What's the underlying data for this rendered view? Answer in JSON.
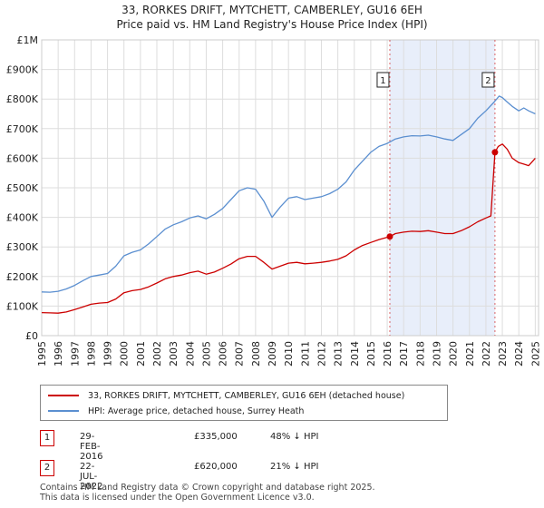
{
  "chart_data": {
    "type": "line",
    "title": "33, RORKES DRIFT, MYTCHETT, CAMBERLEY, GU16 6EH",
    "subtitle": "Price paid vs. HM Land Registry's House Price Index (HPI)",
    "xlim": [
      1995,
      2025.2
    ],
    "ylim": [
      0,
      1000000
    ],
    "x_ticks": [
      "1995",
      "1996",
      "1997",
      "1998",
      "1999",
      "2000",
      "2001",
      "2002",
      "2003",
      "2004",
      "2005",
      "2006",
      "2007",
      "2008",
      "2009",
      "2010",
      "2011",
      "2012",
      "2013",
      "2014",
      "2015",
      "2016",
      "2017",
      "2018",
      "2019",
      "2020",
      "2021",
      "2022",
      "2023",
      "2024",
      "2025"
    ],
    "y_ticks": [
      {
        "value": 0,
        "label": "£0"
      },
      {
        "value": 100000,
        "label": "£100K"
      },
      {
        "value": 200000,
        "label": "£200K"
      },
      {
        "value": 300000,
        "label": "£300K"
      },
      {
        "value": 400000,
        "label": "£400K"
      },
      {
        "value": 500000,
        "label": "£500K"
      },
      {
        "value": 600000,
        "label": "£600K"
      },
      {
        "value": 700000,
        "label": "£700K"
      },
      {
        "value": 800000,
        "label": "£800K"
      },
      {
        "value": 900000,
        "label": "£900K"
      },
      {
        "value": 1000000,
        "label": "£1M"
      }
    ],
    "series": [
      {
        "name": "33, RORKES DRIFT, MYTCHETT, CAMBERLEY, GU16 6EH (detached house)",
        "color": "#cc0000",
        "x": [
          1995,
          1995.5,
          1996,
          1996.5,
          1997,
          1997.5,
          1998,
          1998.5,
          1999,
          1999.5,
          2000,
          2000.5,
          2001,
          2001.5,
          2002,
          2002.5,
          2003,
          2003.5,
          2004,
          2004.5,
          2005,
          2005.5,
          2006,
          2006.5,
          2007,
          2007.5,
          2008,
          2008.5,
          2009,
          2009.5,
          2010,
          2010.5,
          2011,
          2011.5,
          2012,
          2012.5,
          2013,
          2013.5,
          2014,
          2014.5,
          2015,
          2015.5,
          2016.16,
          2016.5,
          2017,
          2017.5,
          2018,
          2018.5,
          2019,
          2019.5,
          2020,
          2020.5,
          2021,
          2021.5,
          2022,
          2022.3,
          2022.55,
          2022.75,
          2023,
          2023.3,
          2023.6,
          2024,
          2024.3,
          2024.6,
          2025
        ],
        "values": [
          78000,
          77000,
          76000,
          80000,
          88000,
          97000,
          106000,
          110000,
          112000,
          124000,
          145000,
          152000,
          156000,
          165000,
          178000,
          192000,
          200000,
          205000,
          213000,
          218000,
          208000,
          215000,
          228000,
          242000,
          260000,
          268000,
          268000,
          248000,
          225000,
          235000,
          245000,
          248000,
          243000,
          245000,
          248000,
          252000,
          258000,
          270000,
          290000,
          305000,
          315000,
          325000,
          335000,
          345000,
          350000,
          353000,
          352000,
          355000,
          350000,
          345000,
          345000,
          355000,
          368000,
          385000,
          398000,
          405000,
          620000,
          640000,
          648000,
          630000,
          600000,
          585000,
          580000,
          575000,
          600000
        ]
      },
      {
        "name": "HPI: Average price, detached house, Surrey Heath",
        "color": "#5b8fd0",
        "x": [
          1995,
          1995.5,
          1996,
          1996.5,
          1997,
          1997.5,
          1998,
          1998.5,
          1999,
          1999.5,
          2000,
          2000.5,
          2001,
          2001.5,
          2002,
          2002.5,
          2003,
          2003.5,
          2004,
          2004.5,
          2005,
          2005.5,
          2006,
          2006.5,
          2007,
          2007.5,
          2008,
          2008.5,
          2009,
          2009.5,
          2010,
          2010.5,
          2011,
          2011.5,
          2012,
          2012.5,
          2013,
          2013.5,
          2014,
          2014.5,
          2015,
          2015.5,
          2016,
          2016.5,
          2017,
          2017.5,
          2018,
          2018.5,
          2019,
          2019.5,
          2020,
          2020.5,
          2021,
          2021.5,
          2022,
          2022.5,
          2022.8,
          2023,
          2023.3,
          2023.6,
          2024,
          2024.3,
          2024.6,
          2025
        ],
        "values": [
          148000,
          147000,
          150000,
          158000,
          170000,
          186000,
          200000,
          205000,
          210000,
          235000,
          270000,
          282000,
          290000,
          310000,
          335000,
          360000,
          375000,
          385000,
          398000,
          405000,
          395000,
          410000,
          430000,
          460000,
          490000,
          500000,
          495000,
          455000,
          400000,
          435000,
          465000,
          470000,
          460000,
          465000,
          470000,
          480000,
          495000,
          520000,
          560000,
          590000,
          620000,
          640000,
          650000,
          665000,
          672000,
          676000,
          675000,
          678000,
          672000,
          665000,
          660000,
          680000,
          700000,
          735000,
          760000,
          790000,
          810000,
          805000,
          790000,
          775000,
          760000,
          770000,
          760000,
          750000
        ]
      }
    ],
    "markers": [
      {
        "label": "1",
        "x": 2016.16,
        "value": 335000
      },
      {
        "label": "2",
        "x": 2022.55,
        "value": 620000
      }
    ]
  },
  "legend": {
    "property_label": "33, RORKES DRIFT, MYTCHETT, CAMBERLEY, GU16 6EH (detached house)",
    "hpi_label": "HPI: Average price, detached house, Surrey Heath"
  },
  "transactions": [
    {
      "num": "1",
      "date": "29-FEB-2016",
      "price": "£335,000",
      "hpi": "48% ↓ HPI"
    },
    {
      "num": "2",
      "date": "22-JUL-2022",
      "price": "£620,000",
      "hpi": "21% ↓ HPI"
    }
  ],
  "footer": {
    "line1": "Contains HM Land Registry data © Crown copyright and database right 2025.",
    "line2": "This data is licensed under the Open Government Licence v3.0."
  },
  "colors": {
    "property": "#cc0000",
    "hpi": "#5b8fd0",
    "shade": "#e8eefa",
    "grid": "#dddddd"
  }
}
